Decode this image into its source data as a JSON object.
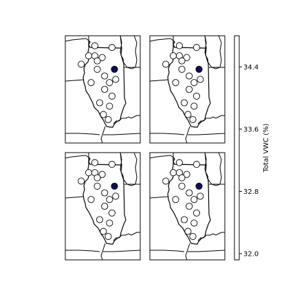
{
  "colorbar": {
    "label": "Total VWC (%)",
    "ticks": [
      "34.4",
      "33.6",
      "32.8",
      "32.0"
    ],
    "tick_values": [
      34.4,
      33.6,
      32.8,
      32.0
    ],
    "range": [
      31.92,
      34.8
    ],
    "fill_color": "#ffffff"
  },
  "map": {
    "station_marker_fill": "#ffffff",
    "highlight_marker_fill": "#0d0d5a",
    "stations": [
      {
        "lon": -88.2,
        "lat": 42.2
      },
      {
        "lon": -89.6,
        "lat": 42.3
      },
      {
        "lon": -90.1,
        "lat": 41.7
      },
      {
        "lon": -89.6,
        "lat": 41.7
      },
      {
        "lon": -89.0,
        "lat": 41.6
      },
      {
        "lon": -89.4,
        "lat": 41.4
      },
      {
        "lon": -90.7,
        "lat": 41.2
      },
      {
        "lon": -89.4,
        "lat": 40.9
      },
      {
        "lon": -88.8,
        "lat": 40.5
      },
      {
        "lon": -87.9,
        "lat": 40.3
      },
      {
        "lon": -89.9,
        "lat": 40.1
      },
      {
        "lon": -88.4,
        "lat": 40.1
      },
      {
        "lon": -88.8,
        "lat": 39.7
      },
      {
        "lon": -88.2,
        "lat": 39.3
      },
      {
        "lon": -89.2,
        "lat": 38.9
      },
      {
        "lon": -88.4,
        "lat": 38.7
      },
      {
        "lon": -88.9,
        "lat": 38.2
      },
      {
        "lon": -88.5,
        "lat": 37.9
      },
      {
        "lon": -88.0,
        "lat": 40.9,
        "highlight": true
      }
    ]
  }
}
